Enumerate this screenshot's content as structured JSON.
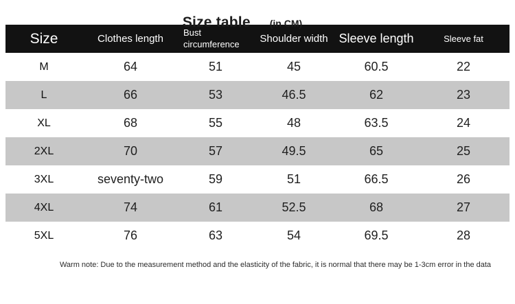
{
  "header": {
    "title": "Size table",
    "unit": "(in CM)"
  },
  "chart_data": {
    "type": "table",
    "title": "Size table (in CM)",
    "columns": [
      "Size",
      "Clothes length",
      "Bust circumference",
      "Shoulder width",
      "Sleeve length",
      "Sleeve fat"
    ],
    "rows": [
      [
        "M",
        "64",
        "51",
        "45",
        "60.5",
        "22"
      ],
      [
        "L",
        "66",
        "53",
        "46.5",
        "62",
        "23"
      ],
      [
        "XL",
        "68",
        "55",
        "48",
        "63.5",
        "24"
      ],
      [
        "2XL",
        "70",
        "57",
        "49.5",
        "65",
        "25"
      ],
      [
        "3XL",
        "seventy-two",
        "59",
        "51",
        "66.5",
        "26"
      ],
      [
        "4XL",
        "74",
        "61",
        "52.5",
        "68",
        "27"
      ],
      [
        "5XL",
        "76",
        "63",
        "54",
        "69.5",
        "28"
      ]
    ],
    "layout": {
      "header_style": "black bar with white text",
      "striped_rows": true,
      "stripe_starts_on_row": 2
    }
  },
  "footer": {
    "note": "Warm note: Due to the measurement method and the elasticity of the fabric, it is normal that there may be 1-3cm error in the data"
  },
  "colors": {
    "header_bg": "#121212",
    "header_text": "#ffffff",
    "row_alt_bg": "#c7c7c7",
    "body_text": "#1f1f1f",
    "background": "#ffffff"
  }
}
